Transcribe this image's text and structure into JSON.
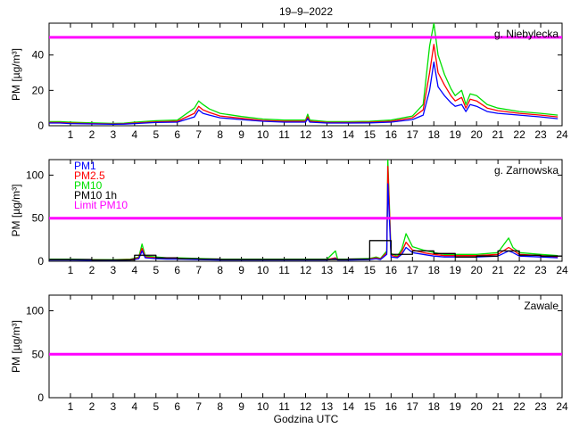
{
  "figure": {
    "title": "19–9–2022",
    "xlabel": "Godzina UTC"
  },
  "colors": {
    "pm1": "#0000ff",
    "pm25": "#ff0000",
    "pm10": "#00e000",
    "pm10_1h": "#000000",
    "limit": "#ff00ff",
    "axes": "#000000"
  },
  "chart_data": [
    {
      "type": "line",
      "station": "g. Niebylecka",
      "ylabel": "PM [µg/m³]",
      "xlim": [
        0,
        24
      ],
      "ylim": [
        0,
        58
      ],
      "xticks": [
        1,
        2,
        3,
        4,
        5,
        6,
        7,
        8,
        9,
        10,
        11,
        12,
        13,
        14,
        15,
        16,
        17,
        18,
        19,
        20,
        21,
        22,
        23,
        24
      ],
      "yticks": [
        0,
        20,
        40
      ],
      "limit_pm10": 50,
      "series": [
        {
          "name": "PM1",
          "key": "pm1",
          "x": [
            0,
            0.5,
            1,
            2,
            3,
            3.5,
            4,
            5,
            6,
            6.8,
            7,
            7.2,
            7.5,
            8,
            9,
            10,
            11,
            12,
            12.1,
            12.2,
            13,
            14,
            15,
            16,
            17,
            17.5,
            17.8,
            18,
            18.2,
            18.5,
            18.8,
            19,
            19.3,
            19.5,
            19.7,
            20,
            20.5,
            21,
            22,
            23,
            23.8
          ],
          "values": [
            1.5,
            1.5,
            1.2,
            1.0,
            0.8,
            0.9,
            1.2,
            1.8,
            2.0,
            5,
            9,
            7,
            6,
            4.5,
            3.5,
            2.5,
            2.0,
            2.0,
            4,
            2,
            1.5,
            1.5,
            1.6,
            2.0,
            3.5,
            6,
            20,
            36,
            22,
            17,
            13,
            11,
            12,
            8,
            12,
            11,
            8,
            7,
            6,
            5,
            4
          ]
        },
        {
          "name": "PM2.5",
          "key": "pm25",
          "x": [
            0,
            0.5,
            1,
            2,
            3,
            3.5,
            4,
            5,
            6,
            6.8,
            7,
            7.2,
            7.5,
            8,
            9,
            10,
            11,
            12,
            12.1,
            12.2,
            13,
            14,
            15,
            16,
            17,
            17.5,
            17.8,
            18,
            18.2,
            18.5,
            18.8,
            19,
            19.3,
            19.5,
            19.7,
            20,
            20.5,
            21,
            22,
            23,
            23.8
          ],
          "values": [
            1.8,
            1.8,
            1.5,
            1.2,
            1.0,
            1.1,
            1.5,
            2.2,
            2.5,
            7,
            11,
            9,
            7.5,
            5.5,
            4.2,
            3.0,
            2.5,
            2.5,
            5,
            2.5,
            1.8,
            1.8,
            2.0,
            2.5,
            4.5,
            9,
            30,
            46,
            30,
            23,
            17,
            14,
            16,
            10,
            15,
            14,
            10,
            8.5,
            7,
            6,
            5
          ]
        },
        {
          "name": "PM10",
          "key": "pm10",
          "x": [
            0,
            0.5,
            1,
            2,
            3,
            3.5,
            4,
            5,
            6,
            6.8,
            7,
            7.2,
            7.5,
            8,
            9,
            10,
            11,
            12,
            12.1,
            12.2,
            13,
            14,
            15,
            16,
            17,
            17.5,
            17.8,
            18,
            18.2,
            18.5,
            18.8,
            19,
            19.3,
            19.5,
            19.7,
            20,
            20.5,
            21,
            22,
            23,
            23.8
          ],
          "values": [
            2.3,
            2.3,
            2.0,
            1.6,
            1.3,
            1.4,
            2.0,
            2.8,
            3.2,
            10,
            14,
            12,
            9.5,
            7,
            5.2,
            3.8,
            3.2,
            3.2,
            6.5,
            3.2,
            2.3,
            2.3,
            2.5,
            3.2,
            5.5,
            12,
            45,
            58,
            40,
            29,
            21,
            17,
            20,
            12,
            18,
            17,
            12,
            10,
            8,
            7,
            6
          ]
        }
      ]
    },
    {
      "type": "line",
      "station": "g. Zarnowska",
      "ylabel": "PM [µg/m³]",
      "xlim": [
        0,
        24
      ],
      "ylim": [
        0,
        118
      ],
      "xticks": [
        1,
        2,
        3,
        4,
        5,
        6,
        7,
        8,
        9,
        10,
        11,
        12,
        13,
        14,
        15,
        16,
        17,
        18,
        19,
        20,
        21,
        22,
        23,
        24
      ],
      "yticks": [
        0,
        50,
        100
      ],
      "limit_pm10": 50,
      "legend": [
        "PM1",
        "PM2.5",
        "PM10",
        "PM10 1h",
        "Limit PM10"
      ],
      "series": [
        {
          "name": "PM1",
          "key": "pm1",
          "x": [
            0,
            1,
            2,
            3,
            3.8,
            4.2,
            4.35,
            4.5,
            5,
            5.5,
            6,
            7,
            8,
            9,
            10,
            11,
            12,
            13,
            13.4,
            13.5,
            14,
            15,
            15.3,
            15.5,
            15.8,
            15.85,
            16,
            16.3,
            16.5,
            16.7,
            17,
            17.5,
            18,
            18.5,
            19,
            20,
            21,
            21.5,
            21.7,
            22,
            23,
            23.8
          ],
          "values": [
            1.5,
            1.5,
            1.2,
            1.0,
            1.5,
            3,
            12,
            4,
            3,
            2.5,
            2.5,
            2,
            1.5,
            1.5,
            1.5,
            1.5,
            1.5,
            1.5,
            3,
            1.5,
            1.5,
            2,
            3,
            2,
            8,
            90,
            5,
            4,
            8,
            16,
            10,
            8,
            6,
            5,
            5,
            5,
            6,
            12,
            10,
            6,
            5,
            4
          ]
        },
        {
          "name": "PM2.5",
          "key": "pm25",
          "x": [
            0,
            1,
            2,
            3,
            3.8,
            4.2,
            4.35,
            4.5,
            5,
            5.5,
            6,
            7,
            8,
            9,
            10,
            11,
            12,
            13,
            13.4,
            13.5,
            14,
            15,
            15.3,
            15.5,
            15.8,
            15.85,
            16,
            16.3,
            16.5,
            16.7,
            17,
            17.5,
            18,
            18.5,
            19,
            20,
            21,
            21.5,
            21.7,
            22,
            23,
            23.8
          ],
          "values": [
            2,
            2,
            1.6,
            1.4,
            2,
            4,
            15,
            5,
            4,
            3.2,
            3.2,
            2.6,
            2,
            2,
            2,
            2,
            2,
            2,
            4,
            2,
            2,
            2.6,
            4,
            2.6,
            10,
            110,
            7,
            5,
            11,
            22,
            13,
            10,
            8,
            6.5,
            6.5,
            6.5,
            8,
            16,
            13,
            8,
            6.5,
            5
          ]
        },
        {
          "name": "PM10",
          "key": "pm10",
          "x": [
            0,
            1,
            2,
            3,
            3.8,
            4.2,
            4.35,
            4.5,
            5,
            5.5,
            6,
            7,
            8,
            9,
            10,
            11,
            12,
            13,
            13.4,
            13.5,
            14,
            15,
            15.3,
            15.5,
            15.8,
            15.85,
            16,
            16.3,
            16.5,
            16.7,
            17,
            17.5,
            18,
            18.5,
            19,
            20,
            21,
            21.5,
            21.7,
            22,
            23,
            23.8
          ],
          "values": [
            2.5,
            2.5,
            2,
            1.8,
            2.5,
            5,
            20,
            6,
            5,
            4,
            4,
            3.2,
            2.5,
            2.5,
            2.5,
            2.5,
            2.5,
            2.5,
            12,
            2.5,
            2.5,
            3.2,
            5,
            3.2,
            12,
            118,
            9,
            6,
            14,
            32,
            17,
            13,
            10,
            8,
            8,
            8,
            10,
            27,
            16,
            10,
            8,
            6.5
          ]
        },
        {
          "name": "PM10 1h",
          "key": "pm10_1h",
          "x": [
            0,
            1,
            2,
            3,
            4,
            5,
            6,
            7,
            8,
            9,
            10,
            11,
            12,
            13,
            14,
            15,
            16,
            17,
            18,
            19,
            20,
            21,
            22,
            23
          ],
          "values": [
            2,
            2,
            1.5,
            1.5,
            7,
            4,
            3,
            2.5,
            2,
            2,
            2,
            2,
            2,
            2,
            2.5,
            24,
            8,
            12,
            9,
            5,
            6,
            12,
            7,
            6
          ]
        }
      ]
    },
    {
      "type": "line",
      "station": "Zawale",
      "ylabel": "PM [µg/m³]",
      "xlim": [
        0,
        24
      ],
      "ylim": [
        0,
        118
      ],
      "xticks": [
        1,
        2,
        3,
        4,
        5,
        6,
        7,
        8,
        9,
        10,
        11,
        12,
        13,
        14,
        15,
        16,
        17,
        18,
        19,
        20,
        21,
        22,
        23,
        24
      ],
      "yticks": [
        0,
        50,
        100
      ],
      "limit_pm10": 50,
      "series": []
    }
  ]
}
